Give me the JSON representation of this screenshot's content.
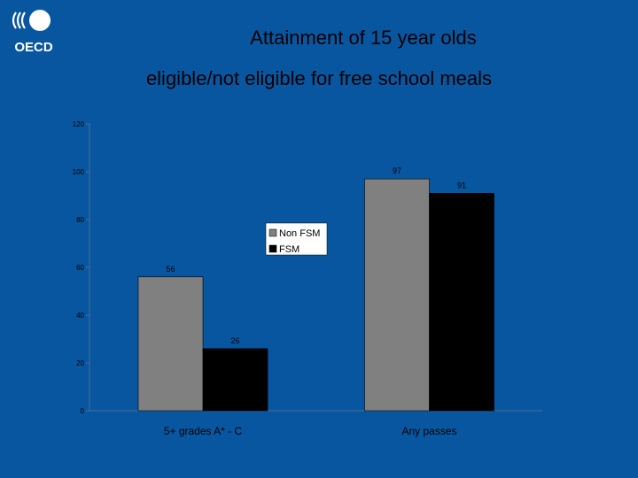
{
  "header": {
    "logo_text": "OECD",
    "title_line1": "Attainment of 15 year olds",
    "title_line2": "eligible/not eligible for free school meals"
  },
  "colors": {
    "background": "#0856a0",
    "series_nonfsm": "#808080",
    "series_fsm": "#000000"
  },
  "chart_data": {
    "type": "bar",
    "title": "",
    "xlabel": "",
    "ylabel": "",
    "categories": [
      "5+ grades A* - C",
      "Any passes"
    ],
    "series": [
      {
        "name": "Non FSM",
        "values": [
          56,
          97
        ],
        "labels": [
          "56",
          "97"
        ],
        "color": "#808080"
      },
      {
        "name": "FSM",
        "values": [
          26,
          91
        ],
        "labels": [
          "26",
          "91"
        ],
        "color": "#000000"
      }
    ],
    "ylim": [
      0,
      120
    ],
    "yticks": [
      "0",
      "20",
      "40",
      "60",
      "80",
      "100",
      "120"
    ],
    "grid": false,
    "legend_position": "center"
  }
}
